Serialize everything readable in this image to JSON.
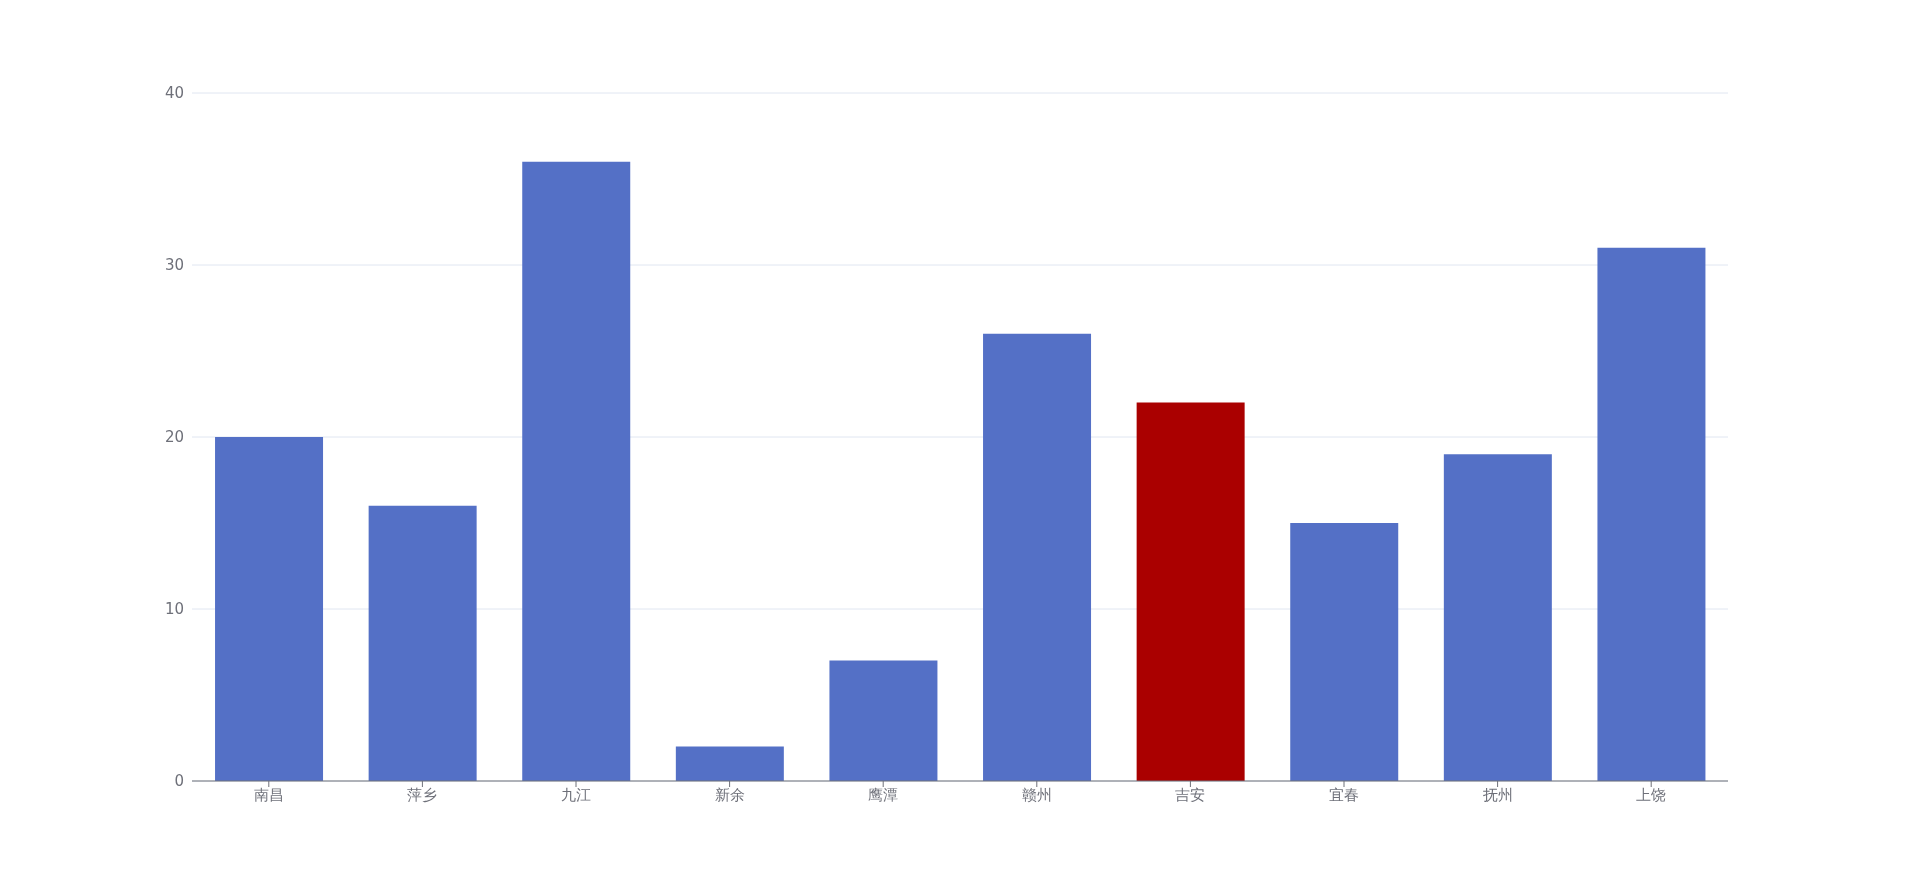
{
  "chart_data": {
    "type": "bar",
    "categories": [
      "南昌",
      "萍乡",
      "九江",
      "新余",
      "鹰潭",
      "赣州",
      "吉安",
      "宜春",
      "抚州",
      "上饶"
    ],
    "values": [
      20,
      16,
      36,
      2,
      7,
      26,
      22,
      15,
      19,
      31
    ],
    "colors": [
      "#5470c6",
      "#5470c6",
      "#5470c6",
      "#5470c6",
      "#5470c6",
      "#5470c6",
      "#aa0000",
      "#5470c6",
      "#5470c6",
      "#5470c6"
    ],
    "ylim": [
      0,
      40
    ],
    "yticks": [
      0,
      10,
      20,
      30,
      40
    ],
    "grid": "y"
  }
}
